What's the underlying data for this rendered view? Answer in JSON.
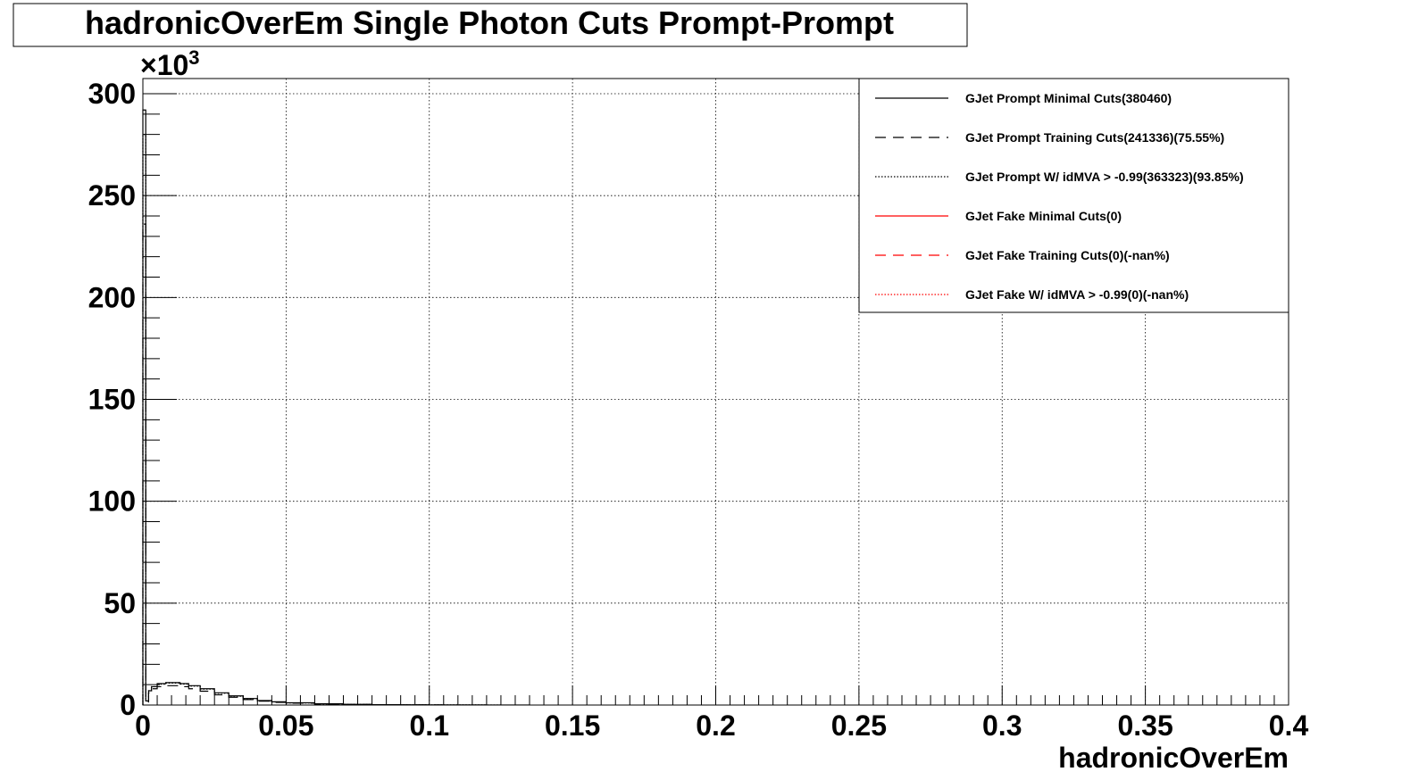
{
  "chart_data": {
    "type": "line",
    "title": "hadronicOverEm Single Photon Cuts Prompt-Prompt",
    "xlabel": "hadronicOverEm",
    "ylabel": "",
    "y_multiplier_label": "×10",
    "y_multiplier_exp": "3",
    "xlim": [
      0,
      0.4
    ],
    "ylim": [
      0,
      300
    ],
    "grid": true,
    "legend_position": "top-right",
    "x_ticks": [
      "0",
      "0.05",
      "0.1",
      "0.15",
      "0.2",
      "0.25",
      "0.3",
      "0.35",
      "0.4"
    ],
    "y_ticks": [
      "0",
      "50",
      "100",
      "150",
      "200",
      "250",
      "300"
    ],
    "series": [
      {
        "name": "GJet Prompt Minimal Cuts(380460)",
        "color": "#000000",
        "style": "solid",
        "x": [
          0.0,
          0.001,
          0.002,
          0.003,
          0.005,
          0.008,
          0.01,
          0.013,
          0.016,
          0.02,
          0.025,
          0.03,
          0.035,
          0.04,
          0.045,
          0.05,
          0.06,
          0.07,
          0.08,
          0.09,
          0.1,
          0.11,
          0.12,
          0.13
        ],
        "y": [
          292,
          2,
          7,
          9,
          10.5,
          11,
          11,
          10.5,
          9.5,
          8,
          6,
          4.5,
          3.2,
          2.2,
          1.6,
          1.1,
          0.6,
          0.35,
          0.2,
          0.12,
          0.08,
          0.05,
          0.03,
          0.02
        ]
      },
      {
        "name": "GJet Prompt Training Cuts(241336)(75.55%)",
        "color": "#000000",
        "style": "dashed",
        "x": [
          0.0,
          0.001,
          0.002,
          0.003,
          0.005,
          0.008,
          0.01,
          0.013,
          0.016,
          0.02,
          0.025,
          0.03,
          0.035,
          0.04,
          0.045,
          0.05,
          0.06,
          0.07,
          0.08,
          0.09,
          0.1
        ],
        "y": [
          236,
          1.5,
          6,
          8,
          9,
          9.5,
          9.5,
          9,
          8,
          6.8,
          5,
          3.8,
          2.7,
          1.9,
          1.3,
          0.9,
          0.5,
          0.28,
          0.15,
          0.08,
          0.05
        ]
      },
      {
        "name": "GJet Prompt W/ idMVA > -0.99(363323)(93.85%)",
        "color": "#000000",
        "style": "dotted",
        "x": [
          0.0,
          0.001,
          0.002,
          0.003,
          0.005,
          0.008,
          0.01,
          0.013,
          0.016,
          0.02,
          0.025,
          0.03,
          0.035,
          0.04,
          0.045,
          0.05,
          0.06,
          0.07,
          0.08,
          0.09,
          0.1,
          0.11,
          0.12
        ],
        "y": [
          280,
          2,
          7,
          9,
          10.2,
          10.8,
          10.8,
          10.3,
          9.3,
          7.8,
          5.8,
          4.3,
          3.1,
          2.1,
          1.5,
          1.05,
          0.55,
          0.32,
          0.18,
          0.1,
          0.07,
          0.04,
          0.02
        ]
      },
      {
        "name": "GJet Fake Minimal Cuts(0)",
        "color": "#ff0000",
        "style": "solid",
        "x": [],
        "y": []
      },
      {
        "name": "GJet Fake Training Cuts(0)(-nan%)",
        "color": "#ff0000",
        "style": "dashed",
        "x": [],
        "y": []
      },
      {
        "name": "GJet Fake W/ idMVA > -0.99(0)(-nan%)",
        "color": "#ff0000",
        "style": "dotted",
        "x": [],
        "y": []
      }
    ]
  }
}
